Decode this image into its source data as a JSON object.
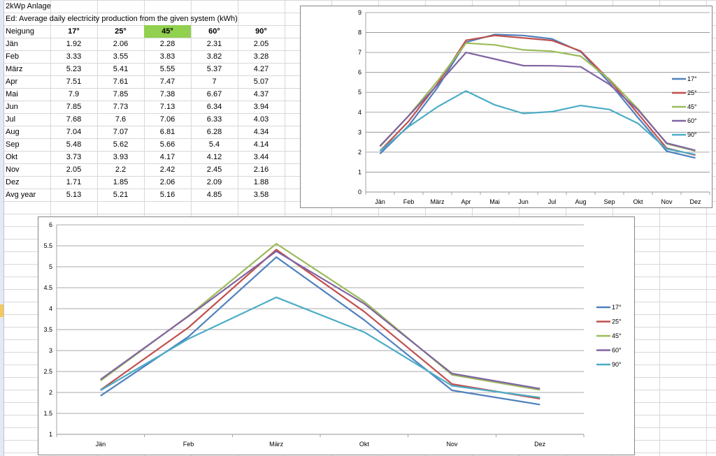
{
  "sheet": {
    "title": "2kWp Anlage",
    "subtitle": "Ed: Average daily electricity production from the given system  (kWh)",
    "header_label": "Neigung",
    "angles": [
      "17°",
      "25°",
      "45°",
      "60°",
      "90°"
    ],
    "highlight_color": "#92d050",
    "rows": [
      {
        "label": "Jän",
        "values": [
          "1.92",
          "2.06",
          "2.28",
          "2.31",
          "2.05"
        ]
      },
      {
        "label": "Feb",
        "values": [
          "3.33",
          "3.55",
          "3.83",
          "3.82",
          "3.28"
        ]
      },
      {
        "label": "März",
        "values": [
          "5.23",
          "5.41",
          "5.55",
          "5.37",
          "4.27"
        ]
      },
      {
        "label": "Apr",
        "values": [
          "7.51",
          "7.61",
          "7.47",
          "7",
          "5.07"
        ]
      },
      {
        "label": "Mai",
        "values": [
          "7.9",
          "7.85",
          "7.38",
          "6.67",
          "4.37"
        ]
      },
      {
        "label": "Jun",
        "values": [
          "7.85",
          "7.73",
          "7.13",
          "6.34",
          "3.94"
        ]
      },
      {
        "label": "Jul",
        "values": [
          "7.68",
          "7.6",
          "7.06",
          "6.33",
          "4.03"
        ]
      },
      {
        "label": "Aug",
        "values": [
          "7.04",
          "7.07",
          "6.81",
          "6.28",
          "4.34"
        ]
      },
      {
        "label": "Sep",
        "values": [
          "5.48",
          "5.62",
          "5.66",
          "5.4",
          "4.14"
        ]
      },
      {
        "label": "Okt",
        "values": [
          "3.73",
          "3.93",
          "4.17",
          "4.12",
          "3.44"
        ]
      },
      {
        "label": "Nov",
        "values": [
          "2.05",
          "2.2",
          "2.42",
          "2.45",
          "2.16"
        ]
      },
      {
        "label": "Dez",
        "values": [
          "1.71",
          "1.85",
          "2.06",
          "2.09",
          "1.88"
        ]
      },
      {
        "label": "Avg year",
        "values": [
          "5.13",
          "5.21",
          "5.16",
          "4.85",
          "3.58"
        ]
      }
    ]
  },
  "chart_data": [
    {
      "type": "line",
      "title": "",
      "xlabel": "",
      "ylabel": "",
      "categories": [
        "Jän",
        "Feb",
        "März",
        "Apr",
        "Mai",
        "Jun",
        "Jul",
        "Aug",
        "Sep",
        "Okt",
        "Nov",
        "Dez"
      ],
      "ylim": [
        0,
        9
      ],
      "yticks": [
        0,
        1,
        2,
        3,
        4,
        5,
        6,
        7,
        8,
        9
      ],
      "grid": true,
      "legend": "right",
      "series": [
        {
          "name": "17°",
          "color": "#4f81bd",
          "values": [
            1.92,
            3.33,
            5.23,
            7.51,
            7.9,
            7.85,
            7.68,
            7.04,
            5.48,
            3.73,
            2.05,
            1.71
          ]
        },
        {
          "name": "25°",
          "color": "#c0504d",
          "values": [
            2.06,
            3.55,
            5.41,
            7.61,
            7.85,
            7.73,
            7.6,
            7.07,
            5.62,
            3.93,
            2.2,
            1.85
          ]
        },
        {
          "name": "45°",
          "color": "#9bbb59",
          "values": [
            2.28,
            3.83,
            5.55,
            7.47,
            7.38,
            7.13,
            7.06,
            6.81,
            5.66,
            4.17,
            2.42,
            2.06
          ]
        },
        {
          "name": "60°",
          "color": "#8064a2",
          "values": [
            2.31,
            3.82,
            5.37,
            7,
            6.67,
            6.34,
            6.33,
            6.28,
            5.4,
            4.12,
            2.45,
            2.09
          ]
        },
        {
          "name": "90°",
          "color": "#4bacc6",
          "values": [
            2.05,
            3.28,
            4.27,
            5.07,
            4.37,
            3.94,
            4.03,
            4.34,
            4.14,
            3.44,
            2.16,
            1.88
          ]
        }
      ]
    },
    {
      "type": "line",
      "title": "",
      "xlabel": "",
      "ylabel": "",
      "categories": [
        "Jän",
        "Feb",
        "März",
        "Okt",
        "Nov",
        "Dez"
      ],
      "ylim": [
        1,
        6
      ],
      "yticks": [
        1,
        1.5,
        2,
        2.5,
        3,
        3.5,
        4,
        4.5,
        5,
        5.5,
        6
      ],
      "grid": true,
      "legend": "right",
      "series": [
        {
          "name": "17°",
          "color": "#4f81bd",
          "values": [
            1.92,
            3.33,
            5.23,
            3.73,
            2.05,
            1.71
          ]
        },
        {
          "name": "25°",
          "color": "#c0504d",
          "values": [
            2.06,
            3.55,
            5.41,
            3.93,
            2.2,
            1.85
          ]
        },
        {
          "name": "45°",
          "color": "#9bbb59",
          "values": [
            2.28,
            3.83,
            5.55,
            4.17,
            2.42,
            2.06
          ]
        },
        {
          "name": "60°",
          "color": "#8064a2",
          "values": [
            2.31,
            3.82,
            5.37,
            4.12,
            2.45,
            2.09
          ]
        },
        {
          "name": "90°",
          "color": "#4bacc6",
          "values": [
            2.05,
            3.28,
            4.27,
            3.44,
            2.16,
            1.88
          ]
        }
      ]
    }
  ]
}
